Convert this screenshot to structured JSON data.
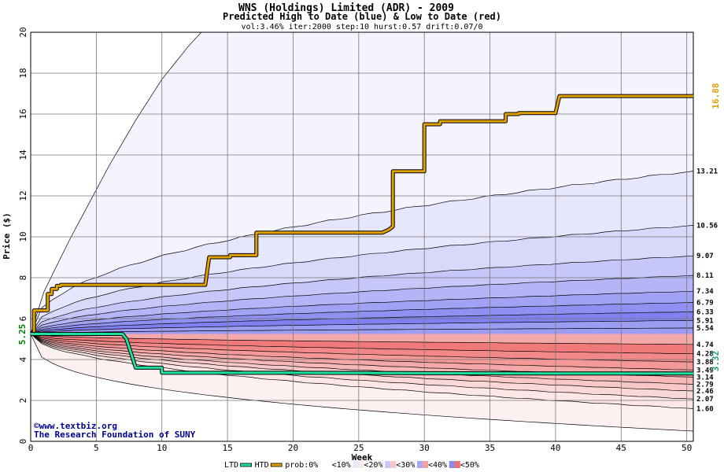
{
  "chart_data": {
    "type": "area",
    "title": "WNS (Holdings) Limited (ADR) - 2009",
    "subtitle": "Predicted High to Date (blue) &  Low to Date (red)",
    "parameters": "vol:3.46% iter:2000 step:10 hurst:0.57 drift:0.07/0",
    "xlabel": "Week",
    "ylabel": "Price ($)",
    "xlim": [
      0,
      50.5
    ],
    "ylim": [
      0,
      20
    ],
    "x_ticks": [
      0,
      5,
      10,
      15,
      20,
      25,
      30,
      35,
      40,
      45,
      50
    ],
    "y_ticks": [
      0,
      2,
      4,
      6,
      8,
      10,
      12,
      14,
      16,
      18,
      20
    ],
    "grid": true,
    "start_price": 5.25,
    "start_price_label": "5.25",
    "htd_end_label": "16.88",
    "ltd_end_label": "3.32",
    "high_quantiles": {
      "end_values": [
        20.0,
        13.21,
        10.56,
        9.07,
        8.11,
        7.34,
        6.79,
        6.33,
        5.91,
        5.54
      ],
      "end_labels": [
        "13.21",
        "10.56",
        "9.07",
        "8.11",
        "7.34",
        "6.79",
        "6.33",
        "5.91",
        "5.54"
      ],
      "outer_curve": {
        "x": [
          0,
          1,
          2,
          3,
          4,
          5,
          6,
          7,
          8,
          9,
          10,
          11,
          12,
          13
        ],
        "y": [
          5.25,
          7.3,
          8.6,
          9.9,
          11.1,
          12.3,
          13.5,
          14.6,
          15.7,
          16.7,
          17.7,
          18.5,
          19.3,
          20.0
        ]
      }
    },
    "low_quantiles": {
      "end_values": [
        4.74,
        4.28,
        3.88,
        3.49,
        3.14,
        2.79,
        2.46,
        2.07,
        1.6,
        0.5
      ],
      "end_labels": [
        "4.74",
        "4.28",
        "3.88",
        "3.49",
        "3.14",
        "2.79",
        "2.46",
        "2.07",
        "1.60"
      ]
    },
    "series": [
      {
        "name": "HTD",
        "color": "#e0a000",
        "x": [
          0,
          0.25,
          0.25,
          1.3,
          1.3,
          1.6,
          1.6,
          2.0,
          2.0,
          2.3,
          2.3,
          13.3,
          13.6,
          15.2,
          15.2,
          17.2,
          17.2,
          26.8,
          27.3,
          27.6,
          27.6,
          30.0,
          30.0,
          31.2,
          31.2,
          36.2,
          36.2,
          37.2,
          37.2,
          40.0,
          40.3,
          50.5
        ],
        "y": [
          5.25,
          5.25,
          6.4,
          6.4,
          7.2,
          7.2,
          7.45,
          7.45,
          7.6,
          7.6,
          7.65,
          7.65,
          9.0,
          9.0,
          9.1,
          9.1,
          10.2,
          10.2,
          10.35,
          10.5,
          13.2,
          13.2,
          15.5,
          15.5,
          15.65,
          15.65,
          16.0,
          16.0,
          16.05,
          16.05,
          16.88,
          16.88
        ]
      },
      {
        "name": "LTD",
        "color": "#20e0a0",
        "x": [
          0,
          0.6,
          7.0,
          7.3,
          7.7,
          8.0,
          10.0,
          10.0,
          11.0,
          14.0,
          20.0,
          30.0,
          40.0,
          50.5
        ],
        "y": [
          5.25,
          5.25,
          5.25,
          5.0,
          4.2,
          3.6,
          3.6,
          3.35,
          3.35,
          3.35,
          3.35,
          3.33,
          3.32,
          3.32
        ]
      }
    ],
    "legend": {
      "placement": "bottom",
      "items": [
        {
          "label": "LTD",
          "type": "line",
          "color": "#20e0a0"
        },
        {
          "label": "HTD",
          "type": "line",
          "color": "#e0a000"
        },
        {
          "label": "prob:0%",
          "type": "text"
        },
        {
          "label": "<10%",
          "type": "swatch",
          "colors": [
            "#ffffff",
            "#ffffff"
          ]
        },
        {
          "label": "<20%",
          "type": "swatch",
          "colors": [
            "#e8e8fc",
            "#fce8e8"
          ]
        },
        {
          "label": "<30%",
          "type": "swatch",
          "colors": [
            "#c8c8f8",
            "#f8c8c8"
          ]
        },
        {
          "label": "<40%",
          "type": "swatch",
          "colors": [
            "#a8a8f4",
            "#f4a0a0"
          ]
        },
        {
          "label": "<50%",
          "type": "swatch",
          "colors": [
            "#8888f0",
            "#f07070"
          ]
        }
      ]
    },
    "credits": [
      "©www.textbiz.org",
      "The Research Foundation of SUNY"
    ],
    "colors": {
      "high_bands": [
        "#f4f4ff",
        "#e6e6fc",
        "#d8d8fa",
        "#c6c6f8",
        "#b4b4f6",
        "#a2a2f4",
        "#9090f2",
        "#8080f0",
        "#9c9cf2"
      ],
      "low_bands": [
        "#f07a7a",
        "#f28888",
        "#f49898",
        "#f5a8a8",
        "#f7b8b8",
        "#f8c8c8",
        "#fad8d8",
        "#fce6e6",
        "#fdf0f0"
      ],
      "htd": "#e0a000",
      "ltd": "#20e0a0",
      "start_label": "#008000",
      "credit": "#000090"
    }
  }
}
